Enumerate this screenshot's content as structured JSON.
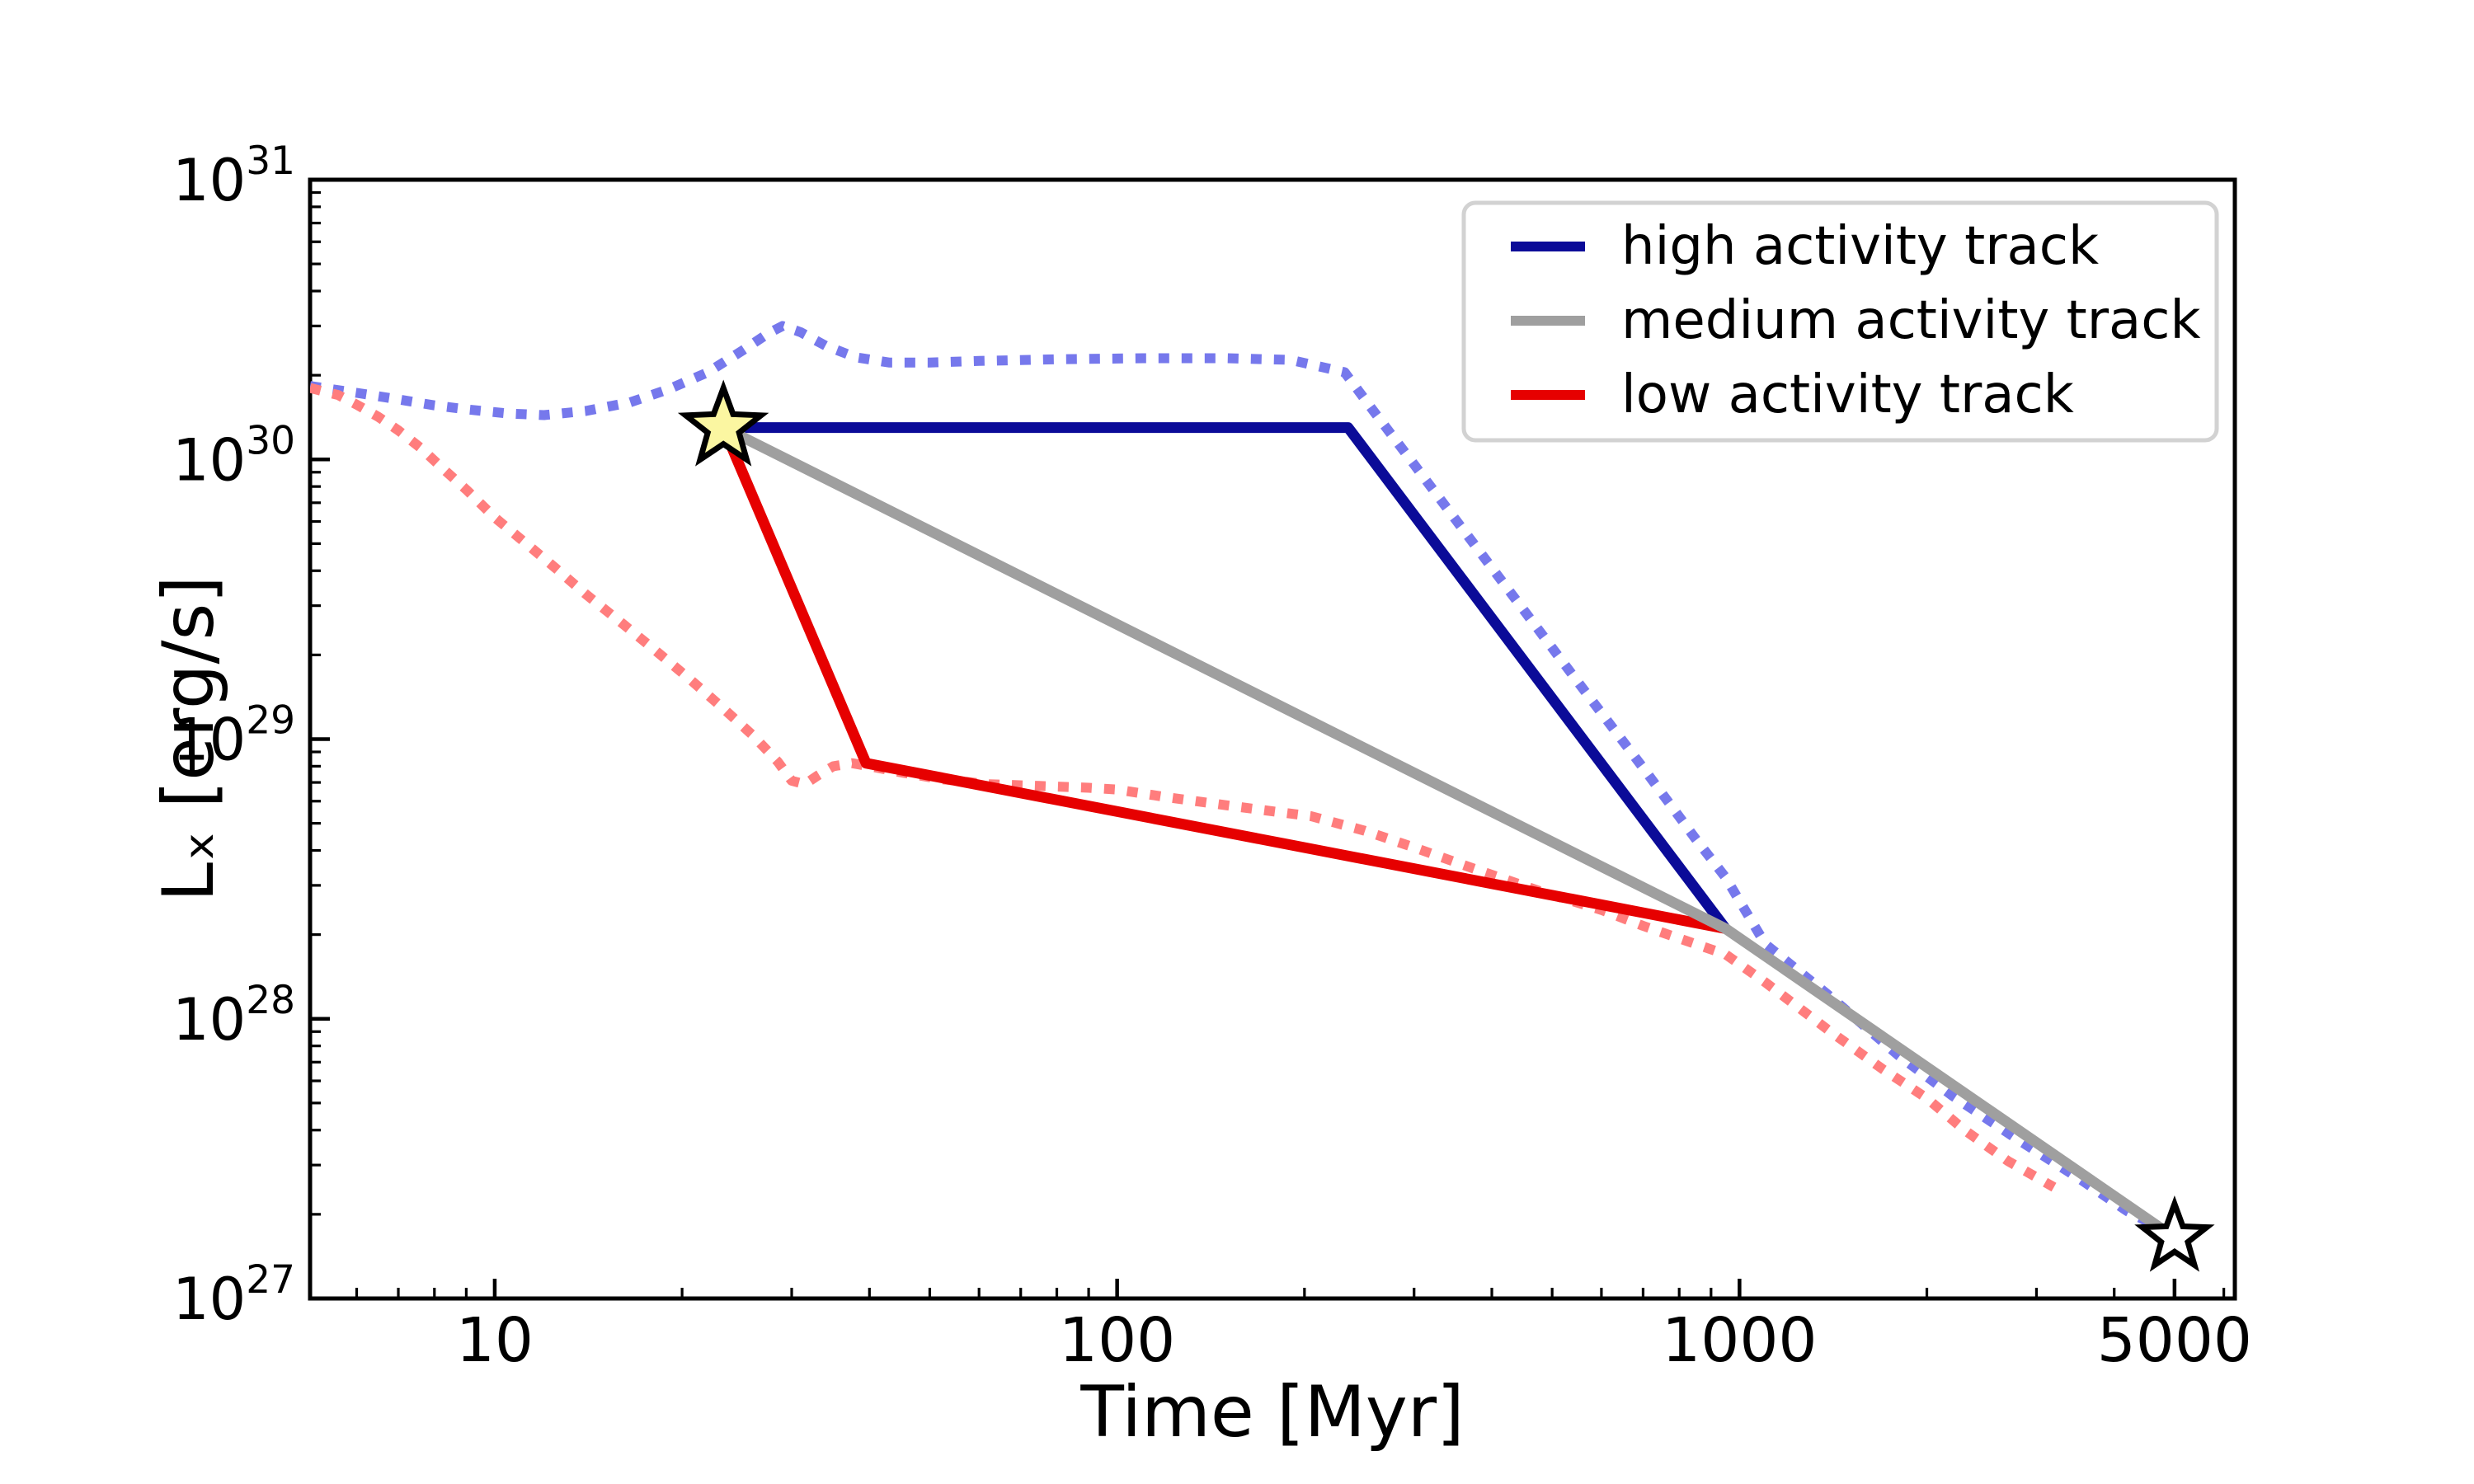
{
  "chart_data": {
    "type": "line",
    "title": "",
    "xlabel": "Time [Myr]",
    "ylabel": "Lₓ [erg/s]",
    "x_scale": "log",
    "y_scale": "log",
    "xlim": [
      5.05,
      6250
    ],
    "ylim": [
      1e+27,
      1e+31
    ],
    "grid": false,
    "x_major_ticks": [
      10,
      100,
      1000,
      5000
    ],
    "x_major_labels": [
      "10",
      "100",
      "1000",
      "5000"
    ],
    "x_minor_ticks": [
      6,
      7,
      8,
      9,
      20,
      30,
      40,
      50,
      60,
      70,
      80,
      90,
      200,
      300,
      400,
      500,
      600,
      700,
      800,
      900,
      2000,
      3000,
      4000,
      6000
    ],
    "y_major_ticks": [
      {
        "value": 1e+27,
        "base": "10",
        "exp": "27"
      },
      {
        "value": 1e+28,
        "base": "10",
        "exp": "28"
      },
      {
        "value": 1e+29,
        "base": "10",
        "exp": "29"
      },
      {
        "value": 1e+30,
        "base": "10",
        "exp": "30"
      },
      {
        "value": 1e+31,
        "base": "10",
        "exp": "31"
      }
    ],
    "legend": [
      {
        "label": "high activity track",
        "color": "#0b0b98"
      },
      {
        "label": "medium activity track",
        "color": "#9f9f9f"
      },
      {
        "label": "low activity track",
        "color": "#e60000"
      }
    ],
    "legend_position": "upper right",
    "series": [
      {
        "name": "high activity model (dotted)",
        "style": "dotted",
        "color": "#7678ec",
        "points": [
          [
            5.05,
            1.83e+30
          ],
          [
            6,
            1.73e+30
          ],
          [
            7,
            1.64e+30
          ],
          [
            8,
            1.56e+30
          ],
          [
            9,
            1.51e+30
          ],
          [
            10.5,
            1.46e+30
          ],
          [
            12,
            1.44e+30
          ],
          [
            14,
            1.49e+30
          ],
          [
            16.5,
            1.6e+30
          ],
          [
            19,
            1.78e+30
          ],
          [
            22,
            2.05e+30
          ],
          [
            25,
            2.45e+30
          ],
          [
            27.5,
            2.82e+30
          ],
          [
            29,
            3e+30
          ],
          [
            31,
            2.85e+30
          ],
          [
            34,
            2.55e+30
          ],
          [
            38,
            2.32e+30
          ],
          [
            43,
            2.22e+30
          ],
          [
            50,
            2.22e+30
          ],
          [
            60,
            2.25e+30
          ],
          [
            80,
            2.28e+30
          ],
          [
            110,
            2.3e+30
          ],
          [
            150,
            2.3e+30
          ],
          [
            190,
            2.27e+30
          ],
          [
            232,
            2.05e+30
          ],
          [
            260,
            1.46e+30
          ],
          [
            300,
            9.6e+29
          ],
          [
            400,
            4.1e+29
          ],
          [
            550,
            1.6e+29
          ],
          [
            700,
            7.9e+28
          ],
          [
            850,
            4.4e+28
          ],
          [
            950,
            3.2e+28
          ],
          [
            1100,
            1.85e+28
          ],
          [
            1400,
            1.2e+28
          ],
          [
            1800,
            7.4e+27
          ],
          [
            2200,
            5.3e+27
          ],
          [
            2800,
            3.7e+27
          ],
          [
            3500,
            2.7e+27
          ],
          [
            4200,
            2.05e+27
          ],
          [
            4700,
            1.8e+27
          ]
        ]
      },
      {
        "name": "low activity model (dotted)",
        "style": "dotted",
        "color": "#ff7d7d",
        "points": [
          [
            5.05,
            1.8e+30
          ],
          [
            5.6,
            1.7e+30
          ],
          [
            6,
            1.57e+30
          ],
          [
            6.5,
            1.42e+30
          ],
          [
            7,
            1.27e+30
          ],
          [
            7.6,
            1.1e+30
          ],
          [
            8.2,
            9.4e+29
          ],
          [
            9,
            7.8e+29
          ],
          [
            10,
            6.2e+29
          ],
          [
            11,
            5.2e+29
          ],
          [
            12.5,
            4.1e+29
          ],
          [
            14,
            3.3e+29
          ],
          [
            16,
            2.6e+29
          ],
          [
            18,
            2.1e+29
          ],
          [
            20.5,
            1.65e+29
          ],
          [
            23,
            1.32e+29
          ],
          [
            26,
            1.03e+29
          ],
          [
            28.5,
            8.3e+28
          ],
          [
            30,
            7.1e+28
          ],
          [
            31.5,
            6.9e+28
          ],
          [
            33,
            7.4e+28
          ],
          [
            35,
            8e+28
          ],
          [
            37.5,
            8.2e+28
          ],
          [
            40,
            8e+28
          ],
          [
            45,
            7.6e+28
          ],
          [
            52,
            7.2e+28
          ],
          [
            62,
            6.9e+28
          ],
          [
            75,
            6.8e+28
          ],
          [
            90,
            6.7e+28
          ],
          [
            100,
            6.6e+28
          ],
          [
            120,
            6.2e+28
          ],
          [
            150,
            5.8e+28
          ],
          [
            180,
            5.5e+28
          ],
          [
            205,
            5.3e+28
          ],
          [
            250,
            4.7e+28
          ],
          [
            300,
            4.1e+28
          ],
          [
            380,
            3.4e+28
          ],
          [
            480,
            2.85e+28
          ],
          [
            600,
            2.45e+28
          ],
          [
            700,
            2.15e+28
          ],
          [
            850,
            1.85e+28
          ],
          [
            950,
            1.7e+28
          ],
          [
            1100,
            1.35e+28
          ],
          [
            1400,
            9e+27
          ],
          [
            1700,
            6.6e+27
          ],
          [
            2000,
            5.2e+27
          ],
          [
            2300,
            4e+27
          ],
          [
            2700,
            3.1e+27
          ],
          [
            3200,
            2.5e+27
          ]
        ]
      },
      {
        "name": "high activity track",
        "style": "solid",
        "color": "#0b0b98",
        "points": [
          [
            23.3,
            1.3e+30
          ],
          [
            235,
            1.3e+30
          ],
          [
            950,
            2.1e+28
          ]
        ]
      },
      {
        "name": "low activity track",
        "style": "solid",
        "color": "#e60000",
        "points": [
          [
            23.3,
            1.3e+30
          ],
          [
            39.5,
            8.2e+28
          ],
          [
            950,
            2.1e+28
          ]
        ]
      },
      {
        "name": "medium activity track",
        "style": "solid",
        "color": "#9f9f9f",
        "points": [
          [
            23.3,
            1.3e+30
          ],
          [
            950,
            2.1e+28
          ],
          [
            5000,
            1.65e+27
          ]
        ]
      }
    ],
    "markers": [
      {
        "name": "start-star",
        "shape": "star",
        "x": 23.3,
        "y": 1.3e+30,
        "fill": "#fbf6a1",
        "edge": "#000000",
        "outer_r": 48,
        "inner_r": 20,
        "edge_width": 7
      },
      {
        "name": "end-star",
        "shape": "star",
        "x": 5000,
        "y": 1.65e+27,
        "fill": "#ffffff",
        "edge": "#000000",
        "outer_r": 41,
        "inner_r": 17,
        "edge_width": 7
      }
    ]
  }
}
